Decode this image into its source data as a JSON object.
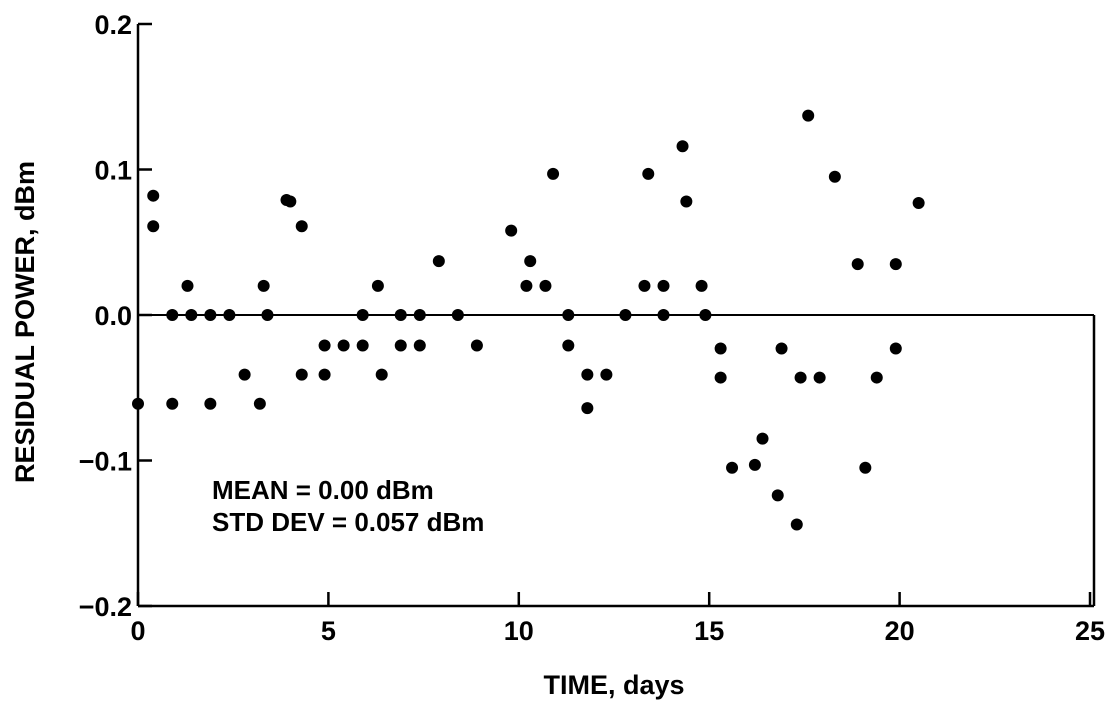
{
  "chart_data": {
    "type": "scatter",
    "x_label": "TIME, days",
    "y_label": "RESIDUAL POWER, dBm",
    "annotations": [
      "MEAN = 0.00 dBm",
      "STD DEV = 0.057 dBm"
    ],
    "color": "#000000",
    "xlim": [
      0,
      25
    ],
    "xticks": [
      0,
      5,
      10,
      15,
      20,
      25
    ],
    "ylim": [
      -0.2,
      0.2
    ],
    "yticks": [
      {
        "value": -0.2,
        "label": "−0.2"
      },
      {
        "value": -0.1,
        "label": "−0.1"
      },
      {
        "value": 0,
        "label": "0.0"
      },
      0.1,
      0.2
    ],
    "zero_line": true,
    "x": [
      0.0,
      0.4,
      0.4,
      0.9,
      0.9,
      1.3,
      1.4,
      1.9,
      1.9,
      2.4,
      2.8,
      3.3,
      3.4,
      3.2,
      3.9,
      4.0,
      4.3,
      4.3,
      4.9,
      4.9,
      5.4,
      5.9,
      5.9,
      6.3,
      6.4,
      6.9,
      6.9,
      7.4,
      7.4,
      7.9,
      8.4,
      8.9,
      9.8,
      10.3,
      10.2,
      10.7,
      10.9,
      11.3,
      11.3,
      11.8,
      11.8,
      12.3,
      12.8,
      13.3,
      13.4,
      13.8,
      13.8,
      14.3,
      14.4,
      14.8,
      14.9,
      15.3,
      15.3,
      15.6,
      16.2,
      16.4,
      16.8,
      16.9,
      17.3,
      17.4,
      17.6,
      17.9,
      18.3,
      18.9,
      19.1,
      19.4,
      19.9,
      19.9,
      20.5
    ],
    "values": [
      -0.061,
      0.082,
      0.061,
      0.0,
      -0.061,
      0.02,
      0.0,
      0.0,
      -0.061,
      0.0,
      -0.041,
      0.02,
      0.0,
      -0.061,
      0.079,
      0.078,
      0.061,
      -0.041,
      -0.021,
      -0.041,
      -0.021,
      -0.021,
      0.0,
      0.02,
      -0.041,
      0.0,
      -0.021,
      0.0,
      -0.021,
      0.037,
      0.0,
      -0.021,
      0.058,
      0.037,
      0.02,
      0.02,
      0.097,
      -0.021,
      0.0,
      -0.041,
      -0.064,
      -0.041,
      0.0,
      0.02,
      0.097,
      0.02,
      0.0,
      0.116,
      0.078,
      0.02,
      0.0,
      -0.023,
      -0.043,
      -0.105,
      -0.103,
      -0.085,
      -0.124,
      -0.023,
      -0.144,
      -0.043,
      0.137,
      -0.043,
      0.095,
      0.035,
      -0.105,
      -0.043,
      0.035,
      -0.023,
      0.077
    ]
  }
}
